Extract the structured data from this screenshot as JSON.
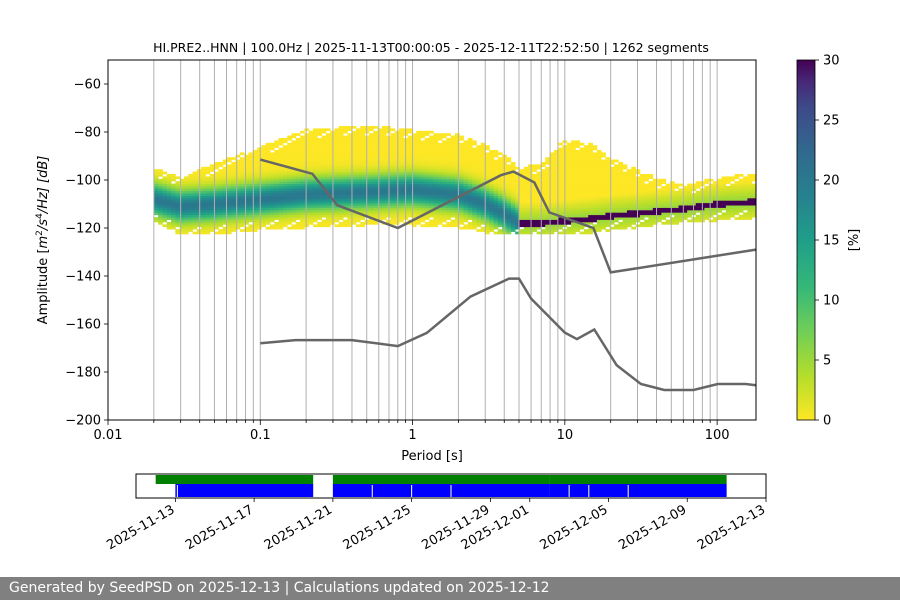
{
  "title": "HI.PRE2..HNN | 100.0Hz | 2025-11-13T00:00:05 - 2025-12-11T22:52:50 | 1262 segments",
  "footer": "Generated by SeedPSD on 2025-12-13 | Calculations updated on 2025-12-12",
  "chart_data": [
    {
      "type": "heatmap",
      "title": "HI.PRE2..HNN | 100.0Hz | 2025-11-13T00:00:05 - 2025-12-11T22:52:50 | 1262 segments",
      "xlabel": "Period [s]",
      "ylabel": "Amplitude [m²/s⁴/Hz] [dB]",
      "ylabel_parts": {
        "prefix": "Amplitude [",
        "m": "m",
        "sup1": "2",
        "mid": "/s",
        "sup2": "4",
        "end": "/Hz] [dB]"
      },
      "x_scale": "log",
      "xlim": [
        0.01,
        180
      ],
      "ylim": [
        -200,
        -50
      ],
      "x_ticks": [
        0.01,
        0.1,
        1,
        10,
        100
      ],
      "x_tick_labels": [
        "0.01",
        "0.1",
        "1",
        "10",
        "100"
      ],
      "y_ticks": [
        -200,
        -180,
        -160,
        -140,
        -120,
        -100,
        -80,
        -60
      ],
      "y_tick_labels": [
        "−200",
        "−180",
        "−160",
        "−140",
        "−120",
        "−100",
        "−80",
        "−60"
      ],
      "grid": "x major and minor",
      "colorbar": {
        "label": "[%]",
        "range": [
          0,
          30
        ],
        "ticks": [
          0,
          5,
          10,
          15,
          20,
          25,
          30
        ],
        "tick_labels": [
          "0",
          "5",
          "10",
          "15",
          "20",
          "25",
          "30"
        ],
        "colormap": "viridis_r"
      },
      "mode_curve": {
        "period": [
          0.02,
          0.03,
          0.05,
          0.1,
          0.2,
          0.5,
          1,
          2,
          3,
          4,
          5,
          7,
          10,
          15,
          20,
          40,
          60,
          100,
          180
        ],
        "db": [
          -108,
          -111,
          -110,
          -108,
          -106,
          -105,
          -104,
          -106,
          -110,
          -114,
          -118,
          -118,
          -117,
          -116,
          -115,
          -113,
          -112,
          -110,
          -109
        ]
      },
      "band_edges": {
        "period": [
          0.02,
          0.03,
          0.05,
          0.1,
          0.2,
          0.5,
          1,
          2,
          3,
          4,
          5,
          7,
          10,
          15,
          20,
          40,
          60,
          100,
          180
        ],
        "upper_db": [
          -96,
          -100,
          -94,
          -87,
          -80,
          -78,
          -80,
          -82,
          -86,
          -90,
          -96,
          -94,
          -84,
          -86,
          -92,
          -100,
          -103,
          -100,
          -98
        ],
        "lower_db": [
          -116,
          -122,
          -122,
          -120,
          -119,
          -118,
          -118,
          -119,
          -121,
          -122,
          -122,
          -122,
          -122,
          -121,
          -120,
          -118,
          -117,
          -116,
          -115
        ]
      },
      "model_curves": [
        {
          "period": [
            0.1,
            0.22,
            0.32,
            0.8,
            3.8,
            4.6,
            6.3,
            7.9,
            15.4,
            20,
            180
          ],
          "db": [
            -91.5,
            -97.4,
            -110.5,
            -120,
            -98,
            -96.5,
            -101,
            -113.5,
            -120,
            -138.5,
            -129
          ]
        },
        {
          "period": [
            0.1,
            0.17,
            0.4,
            0.8,
            1.24,
            2.4,
            4.3,
            5,
            6.0,
            10,
            12,
            15.6,
            21.9,
            31.6,
            45,
            70,
            101,
            154,
            180
          ],
          "db": [
            -168,
            -166.7,
            -166.7,
            -169.2,
            -163.7,
            -148.6,
            -141.1,
            -141.1,
            -149.4,
            -163.6,
            -166.3,
            -162.3,
            -177.2,
            -185,
            -187.5,
            -187.5,
            -185,
            -185,
            -185.5
          ]
        }
      ]
    },
    {
      "type": "timeline",
      "x_ticks": [
        "2025-11-13",
        "2025-11-17",
        "2025-11-21",
        "2025-11-25",
        "2025-11-29",
        "2025-12-01",
        "2025-12-05",
        "2025-12-09",
        "2025-12-13"
      ],
      "xlim": [
        "2025-11-11",
        "2025-12-13"
      ],
      "colors": {
        "data": "#008000",
        "psd": "#0000ff"
      },
      "data_segments": [
        [
          "2025-11-12",
          "2025-11-20"
        ],
        [
          "2025-11-21",
          "2025-12-02"
        ],
        [
          "2025-12-02",
          "2025-12-11"
        ]
      ],
      "psd_segments": [
        [
          "2025-11-13",
          "2025-11-20"
        ],
        [
          "2025-11-21",
          "2025-12-02"
        ],
        [
          "2025-12-02",
          "2025-12-11"
        ]
      ],
      "psd_gaps": [
        "2025-11-13",
        "2025-11-23",
        "2025-11-25",
        "2025-11-27",
        "2025-12-03",
        "2025-12-04",
        "2025-12-06"
      ]
    }
  ]
}
